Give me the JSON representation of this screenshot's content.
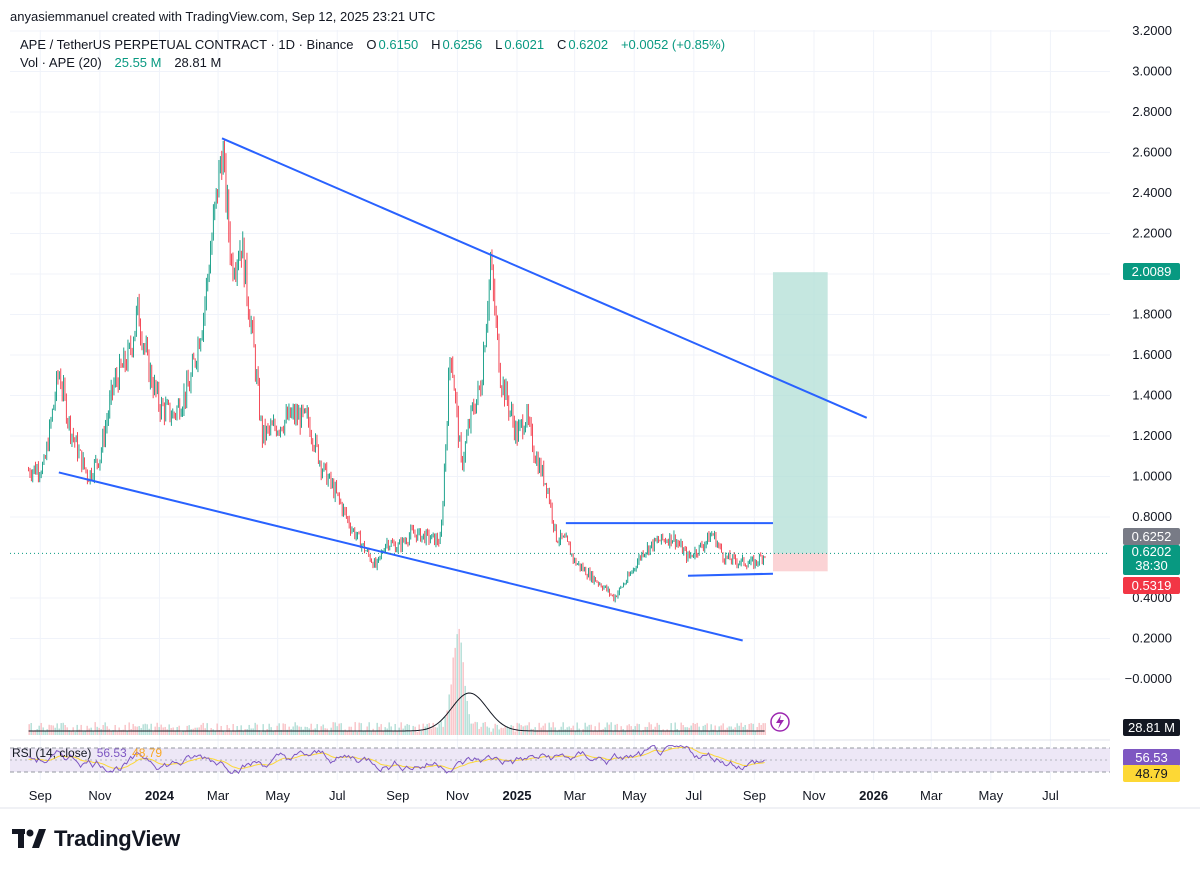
{
  "header": {
    "attribution": "anyasiemmanuel created with TradingView.com, Sep 12, 2025 23:21 UTC"
  },
  "legend": {
    "symbol": "APE / TetherUS PERPETUAL CONTRACT · 1D · Binance",
    "o_label": "O",
    "o_value": "0.6150",
    "h_label": "H",
    "h_value": "0.6256",
    "l_label": "L",
    "l_value": "0.6021",
    "c_label": "C",
    "c_value": "0.6202",
    "change": "+0.0052 (+0.85%)",
    "vol_label": "Vol · APE (20)",
    "vol_value1": "25.55 M",
    "vol_value2": "28.81 M",
    "rsi_label": "RSI (14, close)",
    "rsi_value1": "56.53",
    "rsi_value2": "48.79"
  },
  "price_tags": {
    "target": "2.0089",
    "high_line": "0.6252",
    "last": "0.6202",
    "countdown": "38:30",
    "stop": "0.5319",
    "volume": "28.81 M",
    "rsi": "56.53",
    "rsi_ma": "48.79"
  },
  "colors": {
    "up": "#089981",
    "down": "#f23645",
    "trendline": "#2962ff",
    "target_zone": "#b2dfd5",
    "stop_zone": "#fbd3d5",
    "rsi_line": "#7e57c2",
    "rsi_ma": "#fdd835",
    "rsi_band": "#ede7f6",
    "grid": "#f0f3fa",
    "logo": "#131722"
  },
  "branding": {
    "logo_text": "TradingView"
  },
  "chart_data": {
    "type": "candlestick",
    "symbol": "APE / TetherUS PERPETUAL CONTRACT",
    "interval": "1D",
    "y_axis": {
      "ticks": [
        "3.2000",
        "3.0000",
        "2.8000",
        "2.6000",
        "2.4000",
        "2.2000",
        "2.0000",
        "1.8000",
        "1.6000",
        "1.4000",
        "1.2000",
        "1.0000",
        "0.8000",
        "0.4000",
        "0.2000",
        "−0.0000"
      ],
      "ylim": [
        -0.3,
        3.2
      ]
    },
    "x_axis": {
      "ticks": [
        "Sep",
        "Nov",
        "2024",
        "Mar",
        "May",
        "Jul",
        "Sep",
        "Nov",
        "2025",
        "Mar",
        "May",
        "Jul",
        "Sep",
        "Nov",
        "2026",
        "Mar",
        "May",
        "Jul"
      ],
      "bold_ticks": [
        "2024",
        "2025",
        "2026"
      ]
    },
    "price_path": [
      {
        "t": "2023-08-20",
        "v": 1.03
      },
      {
        "t": "2023-09-05",
        "v": 1.05
      },
      {
        "t": "2023-09-20",
        "v": 1.52
      },
      {
        "t": "2023-10-01",
        "v": 1.25
      },
      {
        "t": "2023-10-10",
        "v": 1.12
      },
      {
        "t": "2023-10-20",
        "v": 1.0
      },
      {
        "t": "2023-11-01",
        "v": 1.1
      },
      {
        "t": "2023-11-15",
        "v": 1.45
      },
      {
        "t": "2023-12-01",
        "v": 1.6
      },
      {
        "t": "2023-12-10",
        "v": 1.82
      },
      {
        "t": "2023-12-20",
        "v": 1.55
      },
      {
        "t": "2024-01-01",
        "v": 1.35
      },
      {
        "t": "2024-01-15",
        "v": 1.3
      },
      {
        "t": "2024-02-01",
        "v": 1.45
      },
      {
        "t": "2024-02-15",
        "v": 1.8
      },
      {
        "t": "2024-03-01",
        "v": 2.45
      },
      {
        "t": "2024-03-05",
        "v": 2.62
      },
      {
        "t": "2024-03-15",
        "v": 2.05
      },
      {
        "t": "2024-03-25",
        "v": 2.15
      },
      {
        "t": "2024-04-05",
        "v": 1.7
      },
      {
        "t": "2024-04-15",
        "v": 1.2
      },
      {
        "t": "2024-05-01",
        "v": 1.25
      },
      {
        "t": "2024-05-15",
        "v": 1.3
      },
      {
        "t": "2024-06-01",
        "v": 1.28
      },
      {
        "t": "2024-06-15",
        "v": 1.05
      },
      {
        "t": "2024-07-01",
        "v": 0.9
      },
      {
        "t": "2024-07-15",
        "v": 0.75
      },
      {
        "t": "2024-08-01",
        "v": 0.62
      },
      {
        "t": "2024-08-10",
        "v": 0.55
      },
      {
        "t": "2024-08-20",
        "v": 0.68
      },
      {
        "t": "2024-09-01",
        "v": 0.65
      },
      {
        "t": "2024-09-15",
        "v": 0.72
      },
      {
        "t": "2024-10-01",
        "v": 0.7
      },
      {
        "t": "2024-10-15",
        "v": 0.68
      },
      {
        "t": "2024-10-25",
        "v": 1.65
      },
      {
        "t": "2024-11-05",
        "v": 1.05
      },
      {
        "t": "2024-11-15",
        "v": 1.3
      },
      {
        "t": "2024-11-25",
        "v": 1.45
      },
      {
        "t": "2024-12-05",
        "v": 2.05
      },
      {
        "t": "2024-12-15",
        "v": 1.5
      },
      {
        "t": "2025-01-01",
        "v": 1.2
      },
      {
        "t": "2025-01-10",
        "v": 1.3
      },
      {
        "t": "2025-01-20",
        "v": 1.1
      },
      {
        "t": "2025-02-01",
        "v": 0.95
      },
      {
        "t": "2025-02-10",
        "v": 0.7
      },
      {
        "t": "2025-02-20",
        "v": 0.68
      },
      {
        "t": "2025-03-01",
        "v": 0.58
      },
      {
        "t": "2025-03-15",
        "v": 0.52
      },
      {
        "t": "2025-04-01",
        "v": 0.45
      },
      {
        "t": "2025-04-10",
        "v": 0.4
      },
      {
        "t": "2025-04-25",
        "v": 0.5
      },
      {
        "t": "2025-05-10",
        "v": 0.63
      },
      {
        "t": "2025-05-25",
        "v": 0.68
      },
      {
        "t": "2025-06-10",
        "v": 0.7
      },
      {
        "t": "2025-06-25",
        "v": 0.6
      },
      {
        "t": "2025-07-10",
        "v": 0.66
      },
      {
        "t": "2025-07-20",
        "v": 0.72
      },
      {
        "t": "2025-08-01",
        "v": 0.6
      },
      {
        "t": "2025-08-15",
        "v": 0.58
      },
      {
        "t": "2025-09-01",
        "v": 0.57
      },
      {
        "t": "2025-09-12",
        "v": 0.62
      }
    ],
    "trendlines": [
      {
        "name": "upper",
        "from": {
          "t": "2024-03-05",
          "v": 2.67
        },
        "to": {
          "t": "2025-12-25",
          "v": 1.29
        }
      },
      {
        "name": "lower",
        "from": {
          "t": "2023-09-20",
          "v": 1.02
        },
        "to": {
          "t": "2025-08-20",
          "v": 0.19
        }
      },
      {
        "name": "range-top",
        "from": {
          "t": "2025-02-20",
          "v": 0.77
        },
        "to": {
          "t": "2025-09-20",
          "v": 0.77
        }
      },
      {
        "name": "range-bottom",
        "from": {
          "t": "2025-06-25",
          "v": 0.51
        },
        "to": {
          "t": "2025-09-20",
          "v": 0.52
        }
      }
    ],
    "position": {
      "type": "long",
      "entry": 0.6202,
      "target": 2.0089,
      "stop": 0.5319,
      "from": "2025-09-20",
      "to": "2025-11-15"
    },
    "volume_peak_date": "2024-11-01",
    "rsi_range": [
      30,
      70
    ]
  }
}
